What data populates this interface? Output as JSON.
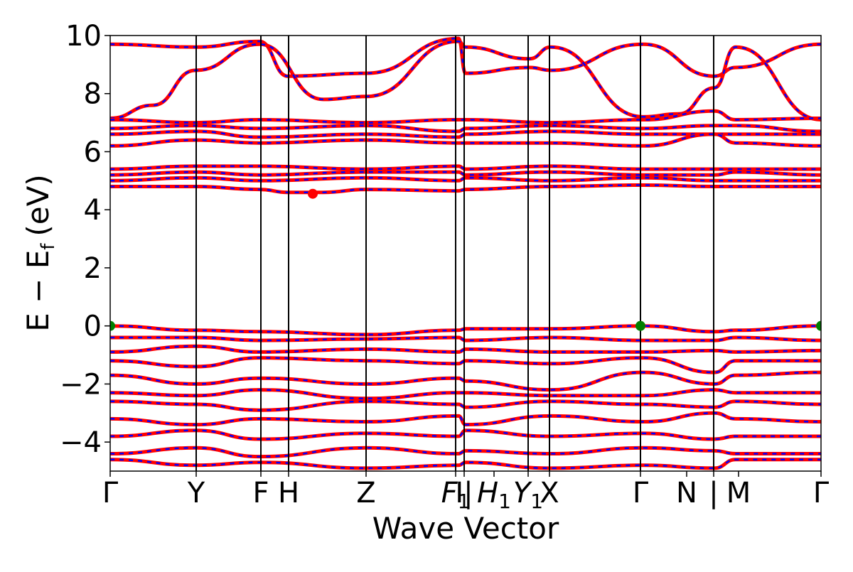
{
  "chart_data": {
    "type": "line",
    "title": "",
    "xlabel": "Wave Vector",
    "ylabel": "E − E",
    "ylabel_sub": "f",
    "ylabel_unit": "(eV)",
    "ylim": [
      -5,
      10
    ],
    "yticks": [
      -4,
      -2,
      0,
      2,
      4,
      6,
      8,
      10
    ],
    "ytick_labels": [
      "−4",
      "−2",
      "0",
      "2",
      "4",
      "6",
      "8",
      "10"
    ],
    "grid": false,
    "legend": "none",
    "xlim": [
      0,
      1
    ],
    "kpoints": [
      {
        "x": 0.0,
        "base": "Γ",
        "sub": ""
      },
      {
        "x": 0.121,
        "base": "Y",
        "sub": ""
      },
      {
        "x": 0.212,
        "base": "F",
        "sub": ""
      },
      {
        "x": 0.251,
        "base": "H",
        "sub": ""
      },
      {
        "x": 0.36,
        "base": "Z",
        "sub": ""
      },
      {
        "x": 0.486,
        "base": "F",
        "sub": "1"
      },
      {
        "x": 0.498,
        "base": "I|",
        "sub": ""
      },
      {
        "x": 0.54,
        "base": "H",
        "sub": "1"
      },
      {
        "x": 0.588,
        "base": "Y",
        "sub": "1"
      },
      {
        "x": 0.618,
        "base": "X",
        "sub": ""
      },
      {
        "x": 0.746,
        "base": "Γ",
        "sub": ""
      },
      {
        "x": 0.811,
        "base": "N",
        "sub": ""
      },
      {
        "x": 0.849,
        "base": "|",
        "sub": ""
      },
      {
        "x": 0.884,
        "base": "M",
        "sub": ""
      },
      {
        "x": 1.0,
        "base": "Γ",
        "sub": ""
      }
    ],
    "vlines": [
      0.121,
      0.212,
      0.251,
      0.36,
      0.486,
      0.498,
      0.588,
      0.618,
      0.746,
      0.849
    ],
    "series_colors": {
      "band": "#ff0000",
      "band_overlay": "#0000ff"
    },
    "markers": [
      {
        "label": "vbm",
        "x": 0.0,
        "y": 0.0,
        "color": "#008000"
      },
      {
        "label": "vbm",
        "x": 0.746,
        "y": 0.0,
        "color": "#008000"
      },
      {
        "label": "vbm",
        "x": 1.0,
        "y": 0.0,
        "color": "#008000"
      },
      {
        "label": "cbm",
        "x": 0.285,
        "y": 4.55,
        "color": "#ff0000"
      }
    ],
    "band_series": [
      {
        "x": [
          0,
          0.12,
          0.21,
          0.25,
          0.36,
          0.49,
          0.5,
          0.59,
          0.62,
          0.75,
          0.85,
          0.88,
          1.0
        ],
        "y": [
          9.7,
          9.6,
          9.8,
          8.6,
          8.7,
          9.9,
          8.7,
          8.9,
          8.8,
          9.7,
          8.6,
          8.9,
          9.7
        ]
      },
      {
        "x": [
          0,
          0.06,
          0.12,
          0.21,
          0.3,
          0.36,
          0.49,
          0.5,
          0.59,
          0.62,
          0.75,
          0.8,
          0.85,
          0.88,
          1.0
        ],
        "y": [
          7.15,
          7.6,
          8.8,
          9.7,
          7.8,
          7.9,
          9.8,
          9.6,
          9.2,
          9.6,
          7.2,
          7.3,
          8.2,
          9.6,
          7.1
        ]
      },
      {
        "x": [
          0,
          0.12,
          0.21,
          0.36,
          0.49,
          0.5,
          0.62,
          0.75,
          0.85,
          0.88,
          1.0
        ],
        "y": [
          7.1,
          7.0,
          7.1,
          7.0,
          7.1,
          7.1,
          7.0,
          7.1,
          7.4,
          7.1,
          7.15
        ]
      },
      {
        "x": [
          0,
          0.12,
          0.21,
          0.36,
          0.49,
          0.5,
          0.62,
          0.75,
          0.85,
          0.88,
          1.0
        ],
        "y": [
          6.8,
          6.9,
          6.8,
          6.9,
          6.7,
          6.8,
          6.9,
          6.8,
          6.9,
          6.9,
          6.7
        ]
      },
      {
        "x": [
          0,
          0.12,
          0.21,
          0.36,
          0.49,
          0.5,
          0.62,
          0.75,
          0.85,
          0.88,
          1.0
        ],
        "y": [
          6.6,
          6.7,
          6.5,
          6.6,
          6.5,
          6.6,
          6.7,
          6.6,
          6.6,
          6.6,
          6.6
        ]
      },
      {
        "x": [
          0,
          0.12,
          0.21,
          0.36,
          0.49,
          0.5,
          0.62,
          0.75,
          0.85,
          0.88,
          1.0
        ],
        "y": [
          6.2,
          6.4,
          6.3,
          6.4,
          6.3,
          6.3,
          6.3,
          6.2,
          6.6,
          6.3,
          6.2
        ]
      },
      {
        "x": [
          0,
          0.12,
          0.21,
          0.36,
          0.49,
          0.5,
          0.62,
          0.75,
          0.85,
          0.88,
          1.0
        ],
        "y": [
          5.4,
          5.5,
          5.5,
          5.4,
          5.5,
          5.4,
          5.5,
          5.4,
          5.4,
          5.4,
          5.4
        ]
      },
      {
        "x": [
          0,
          0.12,
          0.21,
          0.36,
          0.49,
          0.5,
          0.62,
          0.75,
          0.85,
          0.88,
          1.0
        ],
        "y": [
          5.2,
          5.3,
          5.2,
          5.3,
          5.3,
          5.2,
          5.3,
          5.2,
          5.2,
          5.3,
          5.2
        ]
      },
      {
        "x": [
          0,
          0.12,
          0.21,
          0.36,
          0.49,
          0.5,
          0.62,
          0.75,
          0.85,
          0.88,
          1.0
        ],
        "y": [
          5.0,
          5.1,
          5.0,
          5.1,
          5.0,
          5.1,
          5.0,
          5.1,
          5.0,
          5.0,
          5.0
        ]
      },
      {
        "x": [
          0,
          0.12,
          0.21,
          0.25,
          0.3,
          0.36,
          0.49,
          0.5,
          0.62,
          0.75,
          0.85,
          0.88,
          1.0
        ],
        "y": [
          4.8,
          4.8,
          4.7,
          4.6,
          4.6,
          4.7,
          4.65,
          4.7,
          4.8,
          4.85,
          4.8,
          4.8,
          4.8
        ]
      },
      {
        "x": [
          0,
          0.12,
          0.21,
          0.36,
          0.49,
          0.5,
          0.62,
          0.75,
          0.85,
          0.88,
          1.0
        ],
        "y": [
          0.0,
          -0.15,
          -0.2,
          -0.3,
          -0.15,
          -0.1,
          -0.1,
          0.0,
          -0.2,
          -0.15,
          0.0
        ]
      },
      {
        "x": [
          0,
          0.12,
          0.21,
          0.36,
          0.49,
          0.5,
          0.62,
          0.75,
          0.85,
          0.88,
          1.0
        ],
        "y": [
          -0.4,
          -0.4,
          -0.5,
          -0.45,
          -0.4,
          -0.5,
          -0.4,
          -0.5,
          -0.5,
          -0.4,
          -0.5
        ]
      },
      {
        "x": [
          0,
          0.12,
          0.21,
          0.36,
          0.49,
          0.5,
          0.62,
          0.75,
          0.85,
          0.88,
          1.0
        ],
        "y": [
          -0.9,
          -0.7,
          -0.9,
          -0.8,
          -0.9,
          -0.8,
          -0.9,
          -0.9,
          -0.85,
          -0.9,
          -0.85
        ]
      },
      {
        "x": [
          0,
          0.12,
          0.21,
          0.36,
          0.49,
          0.5,
          0.62,
          0.75,
          0.85,
          0.88,
          1.0
        ],
        "y": [
          -1.2,
          -1.4,
          -1.1,
          -1.2,
          -1.3,
          -1.2,
          -1.3,
          -1.1,
          -1.6,
          -1.2,
          -1.2
        ]
      },
      {
        "x": [
          0,
          0.12,
          0.21,
          0.36,
          0.49,
          0.5,
          0.62,
          0.75,
          0.85,
          0.88,
          1.0
        ],
        "y": [
          -1.7,
          -2.0,
          -1.8,
          -2.0,
          -1.8,
          -1.9,
          -2.2,
          -1.6,
          -2.0,
          -1.7,
          -1.6
        ]
      },
      {
        "x": [
          0,
          0.12,
          0.21,
          0.36,
          0.49,
          0.5,
          0.62,
          0.75,
          0.85,
          0.88,
          1.0
        ],
        "y": [
          -2.3,
          -2.4,
          -2.2,
          -2.5,
          -2.3,
          -2.3,
          -2.4,
          -2.4,
          -2.2,
          -2.3,
          -2.3
        ]
      },
      {
        "x": [
          0,
          0.12,
          0.21,
          0.36,
          0.49,
          0.5,
          0.62,
          0.75,
          0.85,
          0.88,
          1.0
        ],
        "y": [
          -2.6,
          -2.7,
          -2.9,
          -2.6,
          -2.7,
          -2.8,
          -2.6,
          -2.7,
          -2.8,
          -2.6,
          -2.7
        ]
      },
      {
        "x": [
          0,
          0.12,
          0.21,
          0.36,
          0.49,
          0.5,
          0.62,
          0.75,
          0.85,
          0.88,
          1.0
        ],
        "y": [
          -3.2,
          -3.4,
          -3.2,
          -3.3,
          -3.1,
          -3.4,
          -3.1,
          -3.3,
          -3.0,
          -3.2,
          -3.3
        ]
      },
      {
        "x": [
          0,
          0.12,
          0.21,
          0.36,
          0.49,
          0.5,
          0.62,
          0.75,
          0.85,
          0.88,
          1.0
        ],
        "y": [
          -3.8,
          -3.6,
          -3.9,
          -3.7,
          -3.8,
          -3.6,
          -3.8,
          -3.7,
          -3.9,
          -3.8,
          -3.8
        ]
      },
      {
        "x": [
          0,
          0.12,
          0.21,
          0.36,
          0.49,
          0.5,
          0.62,
          0.75,
          0.85,
          0.88,
          1.0
        ],
        "y": [
          -4.4,
          -4.2,
          -4.5,
          -4.2,
          -4.4,
          -4.3,
          -4.4,
          -4.2,
          -4.3,
          -4.4,
          -4.4
        ]
      },
      {
        "x": [
          0,
          0.12,
          0.21,
          0.36,
          0.49,
          0.5,
          0.62,
          0.75,
          0.85,
          0.88,
          1.0
        ],
        "y": [
          -4.6,
          -4.8,
          -4.7,
          -4.9,
          -4.8,
          -4.7,
          -4.9,
          -4.8,
          -4.9,
          -4.6,
          -4.6
        ]
      }
    ]
  }
}
